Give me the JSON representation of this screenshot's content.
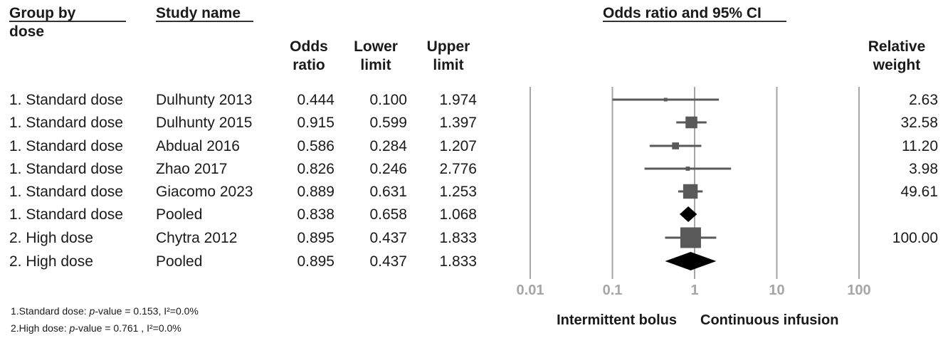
{
  "headers": {
    "group": "Group by dose",
    "group_line1": "Group by",
    "group_line2": "dose",
    "study": "Study name",
    "or_line1": "Odds",
    "or_line2": "ratio",
    "lower_line1": "Lower",
    "lower_line2": "limit",
    "upper_line1": "Upper",
    "upper_line2": "limit",
    "plot_title": "Odds ratio and 95% CI",
    "weight_line1": "Relative",
    "weight_line2": "weight"
  },
  "rows": [
    {
      "group": "1. Standard dose",
      "study": "Dulhunty 2013",
      "or": "0.444",
      "lower": "0.100",
      "upper": "1.974",
      "weight": "2.63"
    },
    {
      "group": "1. Standard dose",
      "study": "Dulhunty 2015",
      "or": "0.915",
      "lower": "0.599",
      "upper": "1.397",
      "weight": "32.58"
    },
    {
      "group": "1. Standard dose",
      "study": "Abdual 2016",
      "or": "0.586",
      "lower": "0.284",
      "upper": "1.207",
      "weight": "11.20"
    },
    {
      "group": "1. Standard dose",
      "study": "Zhao 2017",
      "or": "0.826",
      "lower": "0.246",
      "upper": "2.776",
      "weight": "3.98"
    },
    {
      "group": "1. Standard dose",
      "study": "Giacomo 2023",
      "or": "0.889",
      "lower": "0.631",
      "upper": "1.253",
      "weight": "49.61"
    },
    {
      "group": "1. Standard dose",
      "study": "Pooled",
      "or": "0.838",
      "lower": "0.658",
      "upper": "1.068",
      "weight": ""
    },
    {
      "group": "2. High dose",
      "study": "Chytra 2012",
      "or": "0.895",
      "lower": "0.437",
      "upper": "1.833",
      "weight": "100.00"
    },
    {
      "group": "2. High dose",
      "study": "Pooled",
      "or": "0.895",
      "lower": "0.437",
      "upper": "1.833",
      "weight": ""
    }
  ],
  "footnotes": {
    "line1_prefix": "1.Standard dose: ",
    "line1_p": "p",
    "line1_rest": "-value = 0.153, I²=0.0%",
    "line2_prefix": "2.High dose: ",
    "line2_p": "p",
    "line2_rest": "-value = 0.761 , I²=0.0%"
  },
  "chart_data": {
    "type": "scatter",
    "title": "Odds ratio and 95% CI",
    "x_scale": "log",
    "xlim": [
      0.01,
      100
    ],
    "x_ticks": [
      "0.01",
      "0.1",
      "1",
      "10",
      "100"
    ],
    "x_tick_values": [
      0.01,
      0.1,
      1,
      10,
      100
    ],
    "direction_labels": [
      "Intermittent bolus",
      "Continuous infusion"
    ],
    "grid": true,
    "studies": [
      {
        "label": "Dulhunty 2013",
        "or": 0.444,
        "lower": 0.1,
        "upper": 1.974,
        "weight": 2.63,
        "kind": "study"
      },
      {
        "label": "Dulhunty 2015",
        "or": 0.915,
        "lower": 0.599,
        "upper": 1.397,
        "weight": 32.58,
        "kind": "study"
      },
      {
        "label": "Abdual 2016",
        "or": 0.586,
        "lower": 0.284,
        "upper": 1.207,
        "weight": 11.2,
        "kind": "study"
      },
      {
        "label": "Zhao 2017",
        "or": 0.826,
        "lower": 0.246,
        "upper": 2.776,
        "weight": 3.98,
        "kind": "study"
      },
      {
        "label": "Giacomo 2023",
        "or": 0.889,
        "lower": 0.631,
        "upper": 1.253,
        "weight": 49.61,
        "kind": "study"
      },
      {
        "label": "Pooled",
        "or": 0.838,
        "lower": 0.658,
        "upper": 1.068,
        "weight": null,
        "kind": "pooled"
      },
      {
        "label": "Chytra 2012",
        "or": 0.895,
        "lower": 0.437,
        "upper": 1.833,
        "weight": 100.0,
        "kind": "study"
      },
      {
        "label": "Pooled",
        "or": 0.895,
        "lower": 0.437,
        "upper": 1.833,
        "weight": null,
        "kind": "pooled"
      }
    ],
    "colors": {
      "grid": "#a6a6a6",
      "marker": "#595959",
      "pooled": "#000000",
      "ticks": "#a6a6a6"
    }
  }
}
